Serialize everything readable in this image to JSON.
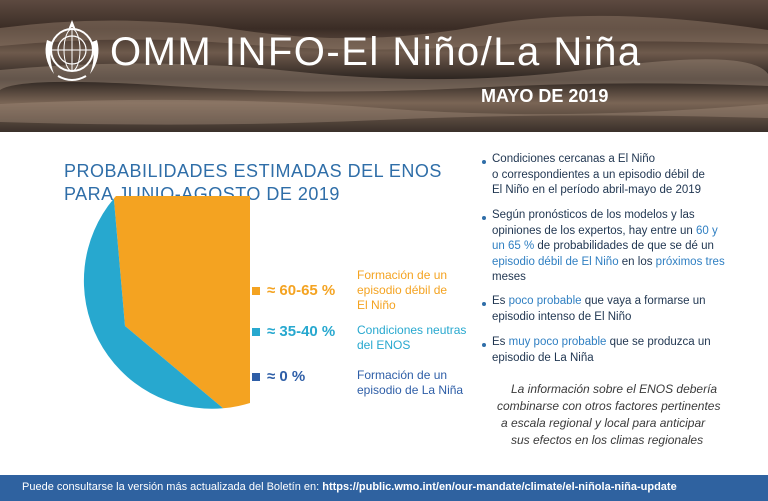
{
  "header": {
    "title": "OMM INFO-El Niño/La Niña",
    "date": "MAYO DE 2019"
  },
  "section_title": [
    "PROBABILIDADES ESTIMADAS DEL ENOS",
    "PARA JUNIO-AGOSTO DE 2019"
  ],
  "colors": {
    "el_nino": "#f4a321",
    "neutral": "#27a8cf",
    "la_nina": "#2e5ea7",
    "title_blue": "#2f6ea8",
    "footer": "#2f62a0"
  },
  "chart_data": {
    "type": "pie",
    "slices": [
      {
        "label": "Formación de un episodio débil de El Niño",
        "value": "≈ 60-65 %",
        "share": 62.5,
        "color": "#f4a321"
      },
      {
        "label": "Condiciones neutras del ENOS",
        "value": "≈ 35-40 %",
        "share": 37.5,
        "color": "#27a8cf"
      },
      {
        "label": "Formación de un episodio de La Niña",
        "value": "≈ 0 %",
        "share": 0,
        "color": "#2e5ea7"
      }
    ]
  },
  "legend": [
    {
      "pct": "≈ 60-65 %",
      "lines": [
        "Formación de un",
        "episodio débil de",
        "El Niño"
      ]
    },
    {
      "pct": "≈ 35-40 %",
      "lines": [
        "Condiciones neutras",
        "del ENOS"
      ]
    },
    {
      "pct": "≈ 0 %",
      "lines": [
        "Formación de un",
        "episodio de La Niña"
      ]
    }
  ],
  "notes": {
    "n1": [
      "Condiciones cercanas a El Niño",
      "o correspondientes a un episodio débil de",
      "El Niño en el período abril-mayo de 2019"
    ],
    "n2": {
      "l1": "Según pronósticos de los modelos y las",
      "l2a": "opiniones de los expertos, hay entre un ",
      "l2b": "60 y",
      "l3a": "un 65 %",
      "l3b": " de probabilidades de que se dé un",
      "l4a": "episodio débil de El Niño",
      "l4b": " en los ",
      "l4c": "próximos tres",
      "l5": "meses"
    },
    "n3": {
      "l1a": "Es ",
      "l1b": "poco probable",
      "l1c": " que vaya a formarse un",
      "l2": "episodio intenso de El Niño"
    },
    "n4": {
      "l1a": "Es ",
      "l1b": "muy poco probable",
      "l1c": " que se produzca un",
      "l2": "episodio de La Niña"
    }
  },
  "italic_note": [
    "La información sobre el ENOS debería",
    "combinarse con otros factores pertinentes",
    "a escala regional y local para anticipar",
    "sus efectos en los climas regionales"
  ],
  "footer": {
    "text": "Puede consultarse la versión más actualizada del Boletín en: ",
    "url": "https://public.wmo.int/en/our-mandate/climate/el-niñola-niña-update"
  }
}
